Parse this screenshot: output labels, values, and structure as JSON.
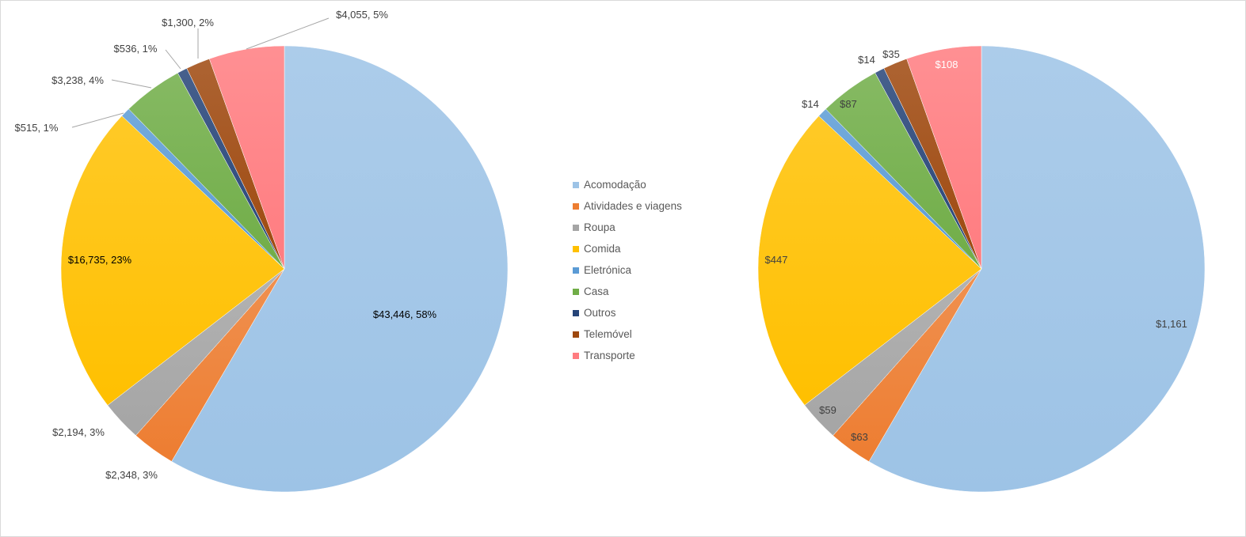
{
  "chart_data": [
    {
      "type": "pie",
      "title": "",
      "categories": [
        "Acomodação",
        "Atividades e viagens",
        "Roupa",
        "Comida",
        "Eletrónica",
        "Casa",
        "Outros",
        "Telemóvel",
        "Transporte"
      ],
      "values": [
        43446,
        2348,
        2194,
        16735,
        515,
        3238,
        536,
        1300,
        4055
      ],
      "labels": [
        "$43,446, 58%",
        "$2,348, 3%",
        "$2,194, 3%",
        "$16,735, 23%",
        "$515, 1%",
        "$3,238, 4%",
        "$536, 1%",
        "$1,300, 2%",
        "$4,055, 5%"
      ]
    },
    {
      "type": "pie",
      "title": "",
      "categories": [
        "Acomodação",
        "Atividades e viagens",
        "Roupa",
        "Comida",
        "Eletrónica",
        "Casa",
        "Outros",
        "Telemóvel",
        "Transporte"
      ],
      "values": [
        1161,
        63,
        59,
        447,
        14,
        87,
        14,
        35,
        108
      ],
      "labels": [
        "$1,161",
        "$63",
        "$59",
        "$447",
        "$14",
        "$87",
        "$14",
        "$35",
        "$108"
      ]
    }
  ],
  "legend": {
    "placement": "center",
    "items": [
      "Acomodação",
      "Atividades e viagens",
      "Roupa",
      "Comida",
      "Eletrónica",
      "Casa",
      "Outros",
      "Telemóvel",
      "Transporte"
    ]
  },
  "colors": [
    "#9DC3E6",
    "#ED7D31",
    "#A5A5A5",
    "#FFC000",
    "#5B9BD5",
    "#70AD47",
    "#264478",
    "#9E480E",
    "#FF7C80"
  ]
}
